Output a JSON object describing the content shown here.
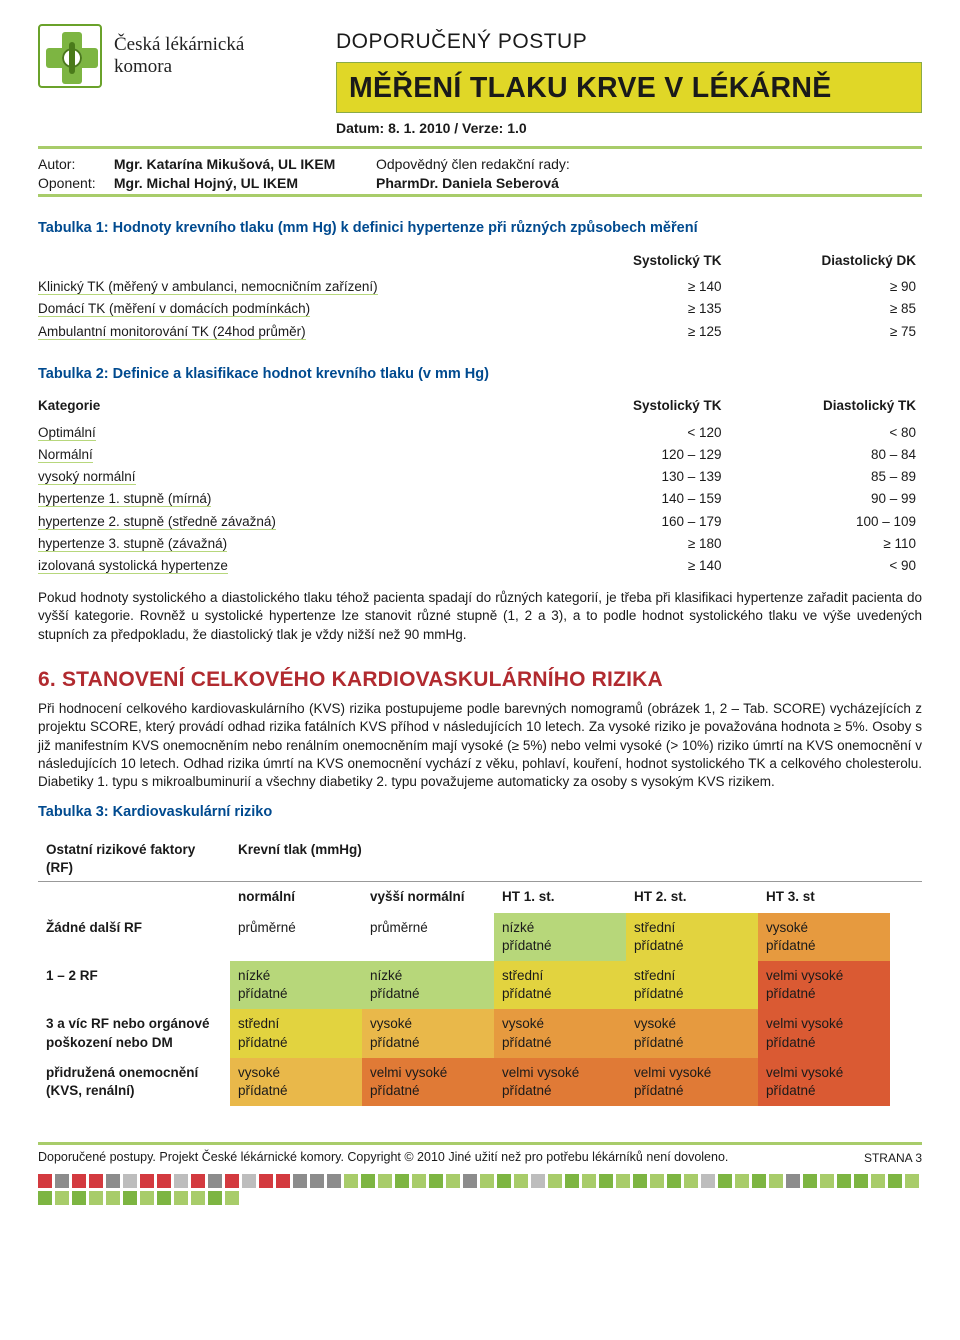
{
  "brand": {
    "line1": "Česká lékárnická",
    "line2": "komora"
  },
  "kicker": "DOPORUČENÝ POSTUP",
  "title": "MĚŘENÍ TLAKU KRVE V LÉKÁRNĚ",
  "dateline": "Datum: 8. 1. 2010 / Verze: 1.0",
  "meta": {
    "author_label": "Autor:",
    "author": "Mgr. Katarína Mikušová, UL IKEM",
    "opponent_label": "Oponent:",
    "opponent": "Mgr. Michal Hojný, UL IKEM",
    "resp_label": "Odpovědný člen redakční rady:",
    "resp": "PharmDr. Daniela Seberová"
  },
  "t1": {
    "caption": "Tabulka 1: Hodnoty krevního tlaku (mm Hg) k definici hypertenze při různých způsobech měření",
    "h_sys": "Systolický TK",
    "h_dia": "Diastolický DK",
    "rows": [
      {
        "label": "Klinický TK (měřený v ambulanci, nemocničním zařízení)",
        "sys": "≥ 140",
        "dia": "≥ 90"
      },
      {
        "label": "Domácí TK (měření v domácích podmínkách)",
        "sys": "≥ 135",
        "dia": "≥ 85"
      },
      {
        "label": "Ambulantní monitorování TK (24hod průměr)",
        "sys": "≥ 125",
        "dia": "≥ 75"
      }
    ]
  },
  "t2": {
    "caption": "Tabulka 2: Definice a klasifikace hodnot krevního tlaku (v mm Hg)",
    "h_cat": "Kategorie",
    "h_sys": "Systolický TK",
    "h_dia": "Diastolický TK",
    "rows": [
      {
        "label": "Optimální",
        "sys": "< 120",
        "dia": "< 80"
      },
      {
        "label": "Normální",
        "sys": "120 – 129",
        "dia": "80 – 84"
      },
      {
        "label": "vysoký normální",
        "sys": "130 – 139",
        "dia": "85 – 89"
      },
      {
        "label": "hypertenze 1. stupně (mírná)",
        "sys": "140 – 159",
        "dia": "90 – 99"
      },
      {
        "label": "hypertenze 2. stupně (středně závažná)",
        "sys": "160 – 179",
        "dia": "100 – 109"
      },
      {
        "label": "hypertenze 3. stupně (závažná)",
        "sys": "≥ 180",
        "dia": "≥ 110"
      },
      {
        "label": "izolovaná systolická hypertenze",
        "sys": "≥ 140",
        "dia": "< 90"
      }
    ]
  },
  "para1": "Pokud hodnoty systolického a diastolického tlaku téhož pacienta spadají do různých kategorií, je třeba při klasifikaci hypertenze zařadit pacienta do vyšší kategorie. Rovněž u systolické hypertenze lze stanovit různé stupně (1, 2 a 3), a to podle hodnot systolického tlaku ve výše uvedených stupních za předpokladu, že diastolický tlak je vždy nižší než 90 mmHg.",
  "sec6": {
    "title": "6. STANOVENÍ CELKOVÉHO KARDIOVASKULÁRNÍHO RIZIKA",
    "para": "Při hodnocení celkového kardiovaskulárního (KVS) rizika postupujeme podle barevných nomogramů (obrázek 1, 2 – Tab. SCORE) vycházejících z projektu SCORE, který provádí odhad rizika fatálních KVS příhod v následujících 10 letech. Za vysoké riziko je považována hodnota ≥ 5%. Osoby s již manifestním KVS onemocněním nebo renálním onemocněním mají vysoké (≥ 5%) nebo velmi vysoké (> 10%) riziko úmrtí na KVS onemocnění v následujících 10 letech. Odhad rizika úmrtí na KVS onemocnění vychází z věku, pohlaví, kouření, hodnot systolického TK a celkového cholesterolu. Diabetiky 1. typu s mikroalbuminurií a všechny diabetiky 2. typu považujeme automaticky za osoby s vysokým KVS rizikem."
  },
  "t3": {
    "caption": "Tabulka 3: Kardiovaskulární riziko",
    "head_left": "Ostatní rizikové faktory (RF)",
    "head_right": "Krevní tlak (mmHg)",
    "cols": [
      "normální",
      "vyšší normální",
      "HT 1. st.",
      "HT 2. st.",
      "HT 3. st"
    ],
    "rows": [
      {
        "label": "Žádné další RF",
        "cells": [
          {
            "t1": "průměrné",
            "t2": "",
            "c": "c-none"
          },
          {
            "t1": "průměrné",
            "t2": "",
            "c": "c-none"
          },
          {
            "t1": "nízké",
            "t2": "přídatné",
            "c": "c-green"
          },
          {
            "t1": "střední",
            "t2": "přídatné",
            "c": "c-yell"
          },
          {
            "t1": "vysoké",
            "t2": "přídatné",
            "c": "c-or2"
          }
        ]
      },
      {
        "label": "1 – 2 RF",
        "cells": [
          {
            "t1": "nízké",
            "t2": "přídatné",
            "c": "c-green"
          },
          {
            "t1": "nízké",
            "t2": "přídatné",
            "c": "c-green"
          },
          {
            "t1": "střední",
            "t2": "přídatné",
            "c": "c-yell"
          },
          {
            "t1": "střední",
            "t2": "přídatné",
            "c": "c-yell"
          },
          {
            "t1": "velmi vysoké",
            "t2": "přídatné",
            "c": "c-red"
          }
        ]
      },
      {
        "label": "3 a víc RF nebo orgánové poškození nebo DM",
        "cells": [
          {
            "t1": "střední",
            "t2": "přídatné",
            "c": "c-yell"
          },
          {
            "t1": "vysoké",
            "t2": "přídatné",
            "c": "c-or1"
          },
          {
            "t1": "vysoké",
            "t2": "přídatné",
            "c": "c-or2"
          },
          {
            "t1": "vysoké",
            "t2": "přídatné",
            "c": "c-or2"
          },
          {
            "t1": "velmi vysoké",
            "t2": "přídatné",
            "c": "c-red"
          }
        ]
      },
      {
        "label": "přidružená onemocnění (KVS, renální)",
        "cells": [
          {
            "t1": "vysoké",
            "t2": "přídatné",
            "c": "c-or1"
          },
          {
            "t1": "velmi vysoké",
            "t2": "přídatné",
            "c": "c-or3"
          },
          {
            "t1": "velmi vysoké",
            "t2": "přídatné",
            "c": "c-or3"
          },
          {
            "t1": "velmi vysoké",
            "t2": "přídatné",
            "c": "c-or3"
          },
          {
            "t1": "velmi vysoké",
            "t2": "přídatné",
            "c": "c-red"
          }
        ]
      }
    ]
  },
  "footer": {
    "text": "Doporučené postupy. Projekt České lékárnické komory. Copyright © 2010 Jiné užití než pro potřebu lékárníků není dovoleno.",
    "page": "STRANA 3"
  },
  "mosaic_colors": [
    "#d33a3f",
    "#8c8c8c",
    "#d33a3f",
    "#d33a3f",
    "#8c8c8c",
    "#bdbdbd",
    "#d33a3f",
    "#d33a3f",
    "#bdbdbd",
    "#d33a3f",
    "#8c8c8c",
    "#d33a3f",
    "#bdbdbd",
    "#d33a3f",
    "#d33a3f",
    "#8c8c8c",
    "#8c8c8c",
    "#8c8c8c",
    "#a8cc6a",
    "#7db542",
    "#a8cc6a",
    "#7db542",
    "#a8cc6a",
    "#7db542",
    "#a8cc6a",
    "#8c8c8c",
    "#a8cc6a",
    "#7db542",
    "#a8cc6a",
    "#bdbdbd",
    "#a8cc6a",
    "#7db542",
    "#a8cc6a",
    "#7db542",
    "#a8cc6a",
    "#7db542",
    "#a8cc6a",
    "#7db542",
    "#a8cc6a",
    "#bdbdbd",
    "#7db542",
    "#a8cc6a",
    "#7db542",
    "#a8cc6a",
    "#8c8c8c",
    "#7db542",
    "#a8cc6a",
    "#7db542",
    "#7db542",
    "#a8cc6a",
    "#7db542",
    "#a8cc6a",
    "#7db542",
    "#a8cc6a",
    "#7db542",
    "#a8cc6a",
    "#a8cc6a",
    "#7db542",
    "#a8cc6a",
    "#7db542",
    "#a8cc6a",
    "#a8cc6a",
    "#7db542",
    "#a8cc6a"
  ]
}
